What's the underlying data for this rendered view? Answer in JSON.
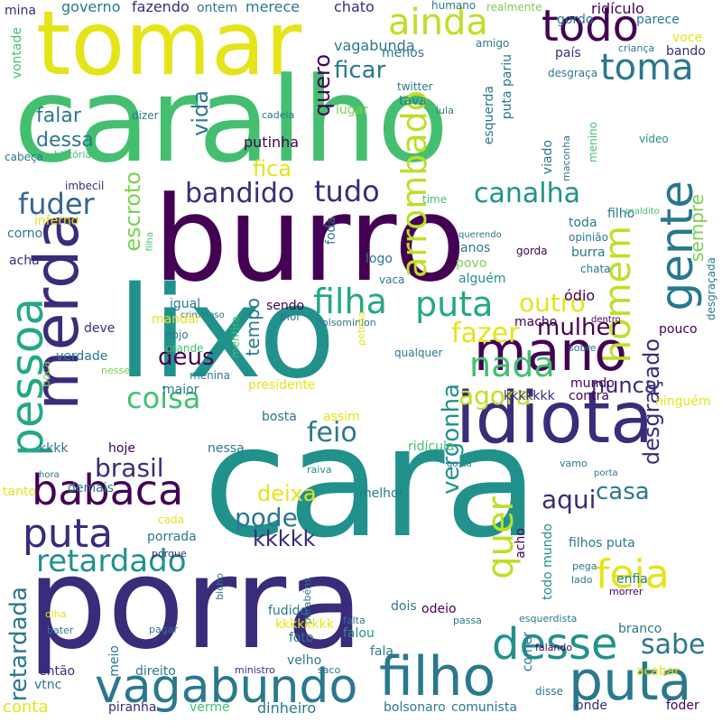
{
  "palette": {
    "dark-purple": "#440154",
    "indigo": "#3b2b7b",
    "blue": "#31668e",
    "teal-blue": "#2a788e",
    "teal": "#21918c",
    "green-teal": "#22a884",
    "green": "#44bf70",
    "light-green": "#7ad151",
    "lime": "#bddf26",
    "yellow": "#e5e419"
  },
  "words": [
    {
      "text": "caralho",
      "color": "green"
    },
    {
      "text": "tomar",
      "color": "yellow"
    },
    {
      "text": "burro",
      "color": "dark-purple"
    },
    {
      "text": "lixo",
      "color": "teal"
    },
    {
      "text": "cara",
      "color": "teal"
    },
    {
      "text": "porra",
      "color": "indigo"
    },
    {
      "text": "idiota",
      "color": "indigo"
    },
    {
      "text": "merda",
      "color": "indigo"
    },
    {
      "text": "pessoa",
      "color": "green-teal"
    },
    {
      "text": "mano",
      "color": "dark-purple"
    },
    {
      "text": "filho",
      "color": "teal-blue"
    },
    {
      "text": "puta",
      "color": "teal-blue"
    },
    {
      "text": "vagabundo",
      "color": "teal-blue"
    },
    {
      "text": "desse",
      "color": "teal"
    },
    {
      "text": "ainda",
      "color": "lime"
    },
    {
      "text": "todo",
      "color": "dark-purple"
    },
    {
      "text": "toma",
      "color": "teal-blue"
    },
    {
      "text": "gente",
      "color": "teal-blue"
    },
    {
      "text": "quer",
      "color": "lime"
    },
    {
      "text": "nada",
      "color": "green"
    },
    {
      "text": "babaca",
      "color": "dark-purple"
    },
    {
      "text": "puta",
      "color": "indigo"
    },
    {
      "text": "coisa",
      "color": "green"
    },
    {
      "text": "feia",
      "color": "yellow"
    },
    {
      "text": "filha",
      "color": "green-teal"
    },
    {
      "text": "puta",
      "color": "green-teal"
    },
    {
      "text": "homem",
      "color": "lime"
    },
    {
      "text": "retardado",
      "color": "teal"
    },
    {
      "text": "canalha",
      "color": "teal"
    },
    {
      "text": "tudo",
      "color": "indigo"
    },
    {
      "text": "bandido",
      "color": "indigo"
    },
    {
      "text": "fuder",
      "color": "blue"
    },
    {
      "text": "fazer",
      "color": "yellow"
    },
    {
      "text": "mulher",
      "color": "dark-purple"
    },
    {
      "text": "outro",
      "color": "yellow"
    },
    {
      "text": "agora",
      "color": "lime"
    },
    {
      "text": "feio",
      "color": "teal-blue"
    },
    {
      "text": "deus",
      "color": "dark-purple"
    },
    {
      "text": "nunca",
      "color": "indigo"
    },
    {
      "text": "brasil",
      "color": "indigo"
    },
    {
      "text": "aqui",
      "color": "indigo"
    },
    {
      "text": "casa",
      "color": "teal-blue"
    },
    {
      "text": "sabe",
      "color": "teal-blue"
    },
    {
      "text": "deixa",
      "color": "yellow"
    },
    {
      "text": "pode",
      "color": "teal-blue"
    },
    {
      "text": "kkkkk",
      "color": "indigo"
    },
    {
      "text": "vida",
      "color": "teal-blue"
    },
    {
      "text": "arrombado",
      "color": "lime"
    },
    {
      "text": "escroto",
      "color": "light-green"
    },
    {
      "text": "ficar",
      "color": "teal-blue"
    },
    {
      "text": "falar",
      "color": "teal-blue"
    },
    {
      "text": "dessa",
      "color": "teal-blue"
    },
    {
      "text": "fica",
      "color": "yellow"
    },
    {
      "text": "quero",
      "color": "dark-purple"
    },
    {
      "text": "desgraçado",
      "color": "indigo"
    },
    {
      "text": "vergonha",
      "color": "teal"
    },
    {
      "text": "retardada",
      "color": "teal-blue"
    },
    {
      "text": "sempre",
      "color": "light-green"
    },
    {
      "text": "tempo",
      "color": "teal-blue"
    },
    {
      "text": "vagabunda",
      "color": "teal-blue"
    },
    {
      "text": "putinha",
      "color": "dark-purple"
    },
    {
      "text": "lugar",
      "color": "light-green"
    },
    {
      "text": "governo",
      "color": "teal-blue"
    },
    {
      "text": "fazendo",
      "color": "indigo"
    },
    {
      "text": "ontem",
      "color": "teal-blue"
    },
    {
      "text": "merece",
      "color": "teal-blue"
    },
    {
      "text": "chato",
      "color": "indigo"
    },
    {
      "text": "humano",
      "color": "teal-blue"
    },
    {
      "text": "realmente",
      "color": "light-green"
    },
    {
      "text": "gordo",
      "color": "teal-blue"
    },
    {
      "text": "ridículo",
      "color": "dark-purple"
    },
    {
      "text": "parece",
      "color": "teal-blue"
    },
    {
      "text": "voce",
      "color": "yellow"
    },
    {
      "text": "bando",
      "color": "indigo"
    },
    {
      "text": "criança",
      "color": "teal-blue"
    },
    {
      "text": "mina",
      "color": "indigo"
    },
    {
      "text": "vontade",
      "color": "green"
    },
    {
      "text": "menos",
      "color": "teal-blue"
    },
    {
      "text": "amigo",
      "color": "teal-blue"
    },
    {
      "text": "país",
      "color": "indigo"
    },
    {
      "text": "desgraça",
      "color": "teal-blue"
    },
    {
      "text": "twitter",
      "color": "teal-blue"
    },
    {
      "text": "tava",
      "color": "teal-blue"
    },
    {
      "text": "lula",
      "color": "teal-blue"
    },
    {
      "text": "esquerda",
      "color": "teal-blue"
    },
    {
      "text": "puta pariu",
      "color": "teal-blue"
    },
    {
      "text": "dizer",
      "color": "teal-blue"
    },
    {
      "text": "cadeia",
      "color": "teal-blue"
    },
    {
      "text": "maconha",
      "color": "teal-blue"
    },
    {
      "text": "menino",
      "color": "green"
    },
    {
      "text": "vídeo",
      "color": "teal"
    },
    {
      "text": "história",
      "color": "green"
    },
    {
      "text": "viado",
      "color": "teal-blue"
    },
    {
      "text": "cabeça",
      "color": "teal-blue"
    },
    {
      "text": "imbecil",
      "color": "indigo"
    },
    {
      "text": "inferno",
      "color": "yellow"
    },
    {
      "text": "corno",
      "color": "teal-blue"
    },
    {
      "text": "acha",
      "color": "indigo"
    },
    {
      "text": "foda",
      "color": "teal-blue"
    },
    {
      "text": "time",
      "color": "green"
    },
    {
      "text": "filho",
      "color": "teal-blue"
    },
    {
      "text": "toda",
      "color": "teal-blue"
    },
    {
      "text": "maldito",
      "color": "green"
    },
    {
      "text": "opinião",
      "color": "teal-blue"
    },
    {
      "text": "querendo",
      "color": "teal-blue"
    },
    {
      "text": "anos",
      "color": "teal-blue"
    },
    {
      "text": "povo",
      "color": "light-green"
    },
    {
      "text": "gorda",
      "color": "dark-purple"
    },
    {
      "text": "burra",
      "color": "teal-blue"
    },
    {
      "text": "alguém",
      "color": "teal"
    },
    {
      "text": "logo",
      "color": "teal-blue"
    },
    {
      "text": "chata",
      "color": "teal-blue"
    },
    {
      "text": "desgraçada",
      "color": "teal-blue"
    },
    {
      "text": "filha",
      "color": "green"
    },
    {
      "text": "vaca",
      "color": "teal-blue"
    },
    {
      "text": "ódio",
      "color": "dark-purple"
    },
    {
      "text": "igual",
      "color": "teal-blue"
    },
    {
      "text": "sendo",
      "color": "dark-purple"
    },
    {
      "text": "criminoso",
      "color": "teal-blue"
    },
    {
      "text": "pior",
      "color": "teal-blue"
    },
    {
      "text": "bolsominion",
      "color": "teal-blue"
    },
    {
      "text": "macho",
      "color": "dark-purple"
    },
    {
      "text": "dentro",
      "color": "dark-purple"
    },
    {
      "text": "pouco",
      "color": "dark-purple"
    },
    {
      "text": "mandar",
      "color": "yellow"
    },
    {
      "text": "deve",
      "color": "indigo"
    },
    {
      "text": "nojo",
      "color": "teal-blue"
    },
    {
      "text": "grande",
      "color": "green"
    },
    {
      "text": "mentira",
      "color": "green"
    },
    {
      "text": "petista",
      "color": "yellow"
    },
    {
      "text": "qualquer",
      "color": "teal-blue"
    },
    {
      "text": "sobre",
      "color": "teal-blue"
    },
    {
      "text": "maior",
      "color": "teal-blue"
    },
    {
      "text": "menina",
      "color": "teal-blue"
    },
    {
      "text": "verdade",
      "color": "teal-blue"
    },
    {
      "text": "nesse",
      "color": "light-green"
    },
    {
      "text": "boca",
      "color": "light-green"
    },
    {
      "text": "presidente",
      "color": "yellow"
    },
    {
      "text": "mundo",
      "color": "dark-purple"
    },
    {
      "text": "contra",
      "color": "dark-purple"
    },
    {
      "text": "ninguém",
      "color": "yellow"
    },
    {
      "text": "kkkkkkk",
      "color": "indigo"
    },
    {
      "text": "bosta",
      "color": "teal-blue"
    },
    {
      "text": "assim",
      "color": "yellow"
    },
    {
      "text": "kkkk",
      "color": "teal-blue"
    },
    {
      "text": "hoje",
      "color": "dark-purple"
    },
    {
      "text": "nessa",
      "color": "teal-blue"
    },
    {
      "text": "ridícula",
      "color": "green"
    },
    {
      "text": "hora",
      "color": "teal-blue"
    },
    {
      "text": "raiva",
      "color": "teal"
    },
    {
      "text": "gosta",
      "color": "teal-blue"
    },
    {
      "text": "vamo",
      "color": "teal-blue"
    },
    {
      "text": "porta",
      "color": "teal-blue"
    },
    {
      "text": "tanto",
      "color": "yellow"
    },
    {
      "text": "demais",
      "color": "teal-blue"
    },
    {
      "text": "melhor",
      "color": "teal-blue"
    },
    {
      "text": "acho",
      "color": "dark-purple"
    },
    {
      "text": "todo mundo",
      "color": "teal"
    },
    {
      "text": "filhos puta",
      "color": "teal-blue"
    },
    {
      "text": "cada",
      "color": "yellow"
    },
    {
      "text": "porrada",
      "color": "teal-blue"
    },
    {
      "text": "porque",
      "color": "indigo"
    },
    {
      "text": "pega",
      "color": "teal-blue"
    },
    {
      "text": "lado",
      "color": "teal-blue"
    },
    {
      "text": "enfia",
      "color": "teal-blue"
    },
    {
      "text": "morrer",
      "color": "dark-purple"
    },
    {
      "text": "bicho",
      "color": "teal-blue"
    },
    {
      "text": "parabéns",
      "color": "teal-blue"
    },
    {
      "text": "fudido",
      "color": "teal-blue"
    },
    {
      "text": "odeio",
      "color": "dark-purple"
    },
    {
      "text": "dois",
      "color": "teal-blue"
    },
    {
      "text": "olha",
      "color": "yellow"
    },
    {
      "text": "bater",
      "color": "teal-blue"
    },
    {
      "text": "pagar",
      "color": "teal-blue"
    },
    {
      "text": "falta",
      "color": "teal-blue"
    },
    {
      "text": "kkkkkkkk",
      "color": "yellow"
    },
    {
      "text": "foto",
      "color": "teal-blue"
    },
    {
      "text": "falou",
      "color": "teal"
    },
    {
      "text": "fala",
      "color": "teal-blue"
    },
    {
      "text": "passa",
      "color": "teal-blue"
    },
    {
      "text": "esquerdista",
      "color": "teal-blue"
    },
    {
      "text": "branco",
      "color": "teal-blue"
    },
    {
      "text": "falando",
      "color": "dark-purple"
    },
    {
      "text": "comer",
      "color": "teal-blue"
    },
    {
      "text": "meio",
      "color": "teal-blue"
    },
    {
      "text": "velho",
      "color": "teal-blue"
    },
    {
      "text": "então",
      "color": "indigo"
    },
    {
      "text": "direito",
      "color": "teal-blue"
    },
    {
      "text": "ministro",
      "color": "indigo"
    },
    {
      "text": "saco",
      "color": "teal-blue"
    },
    {
      "text": "acabar",
      "color": "yellow"
    },
    {
      "text": "vtnc",
      "color": "teal-blue"
    },
    {
      "text": "disse",
      "color": "teal-blue"
    },
    {
      "text": "conta",
      "color": "yellow"
    },
    {
      "text": "piranha",
      "color": "indigo"
    },
    {
      "text": "verme",
      "color": "green"
    },
    {
      "text": "dinheiro",
      "color": "teal-blue"
    },
    {
      "text": "bolsonaro",
      "color": "teal-blue"
    },
    {
      "text": "comunista",
      "color": "teal-blue"
    },
    {
      "text": "onde",
      "color": "indigo"
    },
    {
      "text": "foder",
      "color": "dark-purple"
    },
    {
      "text": "querer",
      "color": "yellow"
    }
  ]
}
